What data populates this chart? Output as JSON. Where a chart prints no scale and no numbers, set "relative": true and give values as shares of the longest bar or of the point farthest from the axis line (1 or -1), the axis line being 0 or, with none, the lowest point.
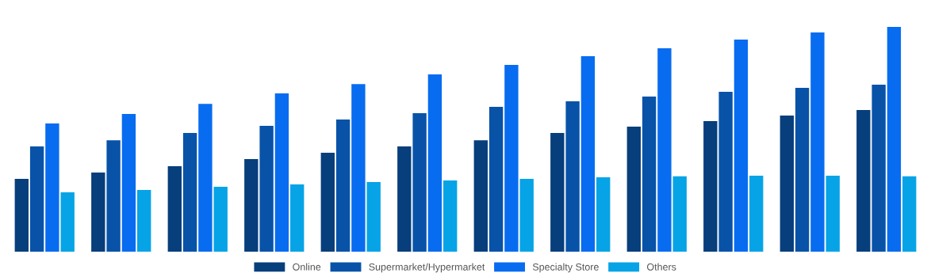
{
  "chart_data": {
    "type": "bar",
    "relative": true,
    "legend": "bottom",
    "grid": false,
    "categories": [
      null,
      null,
      null,
      null,
      null,
      null,
      null,
      null,
      null,
      null,
      null,
      null
    ],
    "series": [
      {
        "name": "Online",
        "color": "#073e7c",
        "values": [
          0.324,
          0.352,
          0.38,
          0.412,
          0.44,
          0.468,
          0.496,
          0.528,
          0.556,
          0.581,
          0.606,
          0.63
        ]
      },
      {
        "name": "Supermarket/Hypermarket",
        "color": "#0853a8",
        "values": [
          0.468,
          0.496,
          0.528,
          0.56,
          0.588,
          0.616,
          0.644,
          0.669,
          0.69,
          0.711,
          0.729,
          0.743
        ]
      },
      {
        "name": "Specialty Store",
        "color": "#086cf0",
        "values": [
          0.57,
          0.613,
          0.658,
          0.704,
          0.746,
          0.789,
          0.831,
          0.87,
          0.905,
          0.944,
          0.975,
          1
        ]
      },
      {
        "name": "Others",
        "color": "#06a4e6",
        "values": [
          0.264,
          0.275,
          0.289,
          0.299,
          0.31,
          0.317,
          0.324,
          0.331,
          0.335,
          0.338,
          0.338,
          0.335
        ]
      }
    ]
  }
}
